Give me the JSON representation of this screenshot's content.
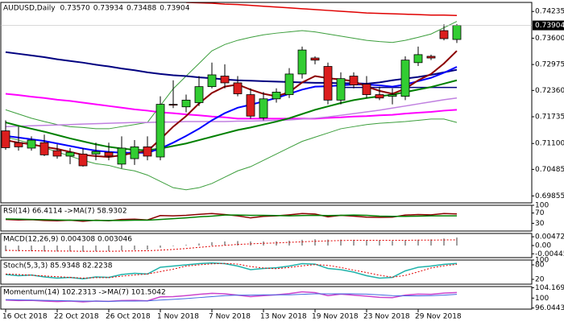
{
  "chart_data": [
    {
      "type": "candlestick",
      "title": "AUDUSD,Daily",
      "header_values": [
        "0.73570",
        "0.73934",
        "0.73488",
        "0.73904"
      ],
      "categories": [
        "16 Oct 2018",
        null,
        null,
        null,
        "22 Oct 2018",
        null,
        null,
        null,
        "26 Oct 2018",
        null,
        null,
        null,
        "1 Nov 2018",
        null,
        null,
        null,
        "7 Nov 2018",
        null,
        null,
        null,
        "13 Nov 2018",
        null,
        null,
        null,
        "19 Nov 2018",
        null,
        null,
        null,
        "23 Nov 2018",
        null,
        null,
        null,
        "29 Nov 2018",
        null,
        null,
        null
      ],
      "open": [
        0.714,
        0.7112,
        0.7099,
        0.7112,
        0.7093,
        0.708,
        0.7085,
        0.7085,
        0.7089,
        0.7061,
        0.7074,
        0.7102,
        0.7078,
        0.7203,
        0.7197,
        0.7207,
        0.7245,
        0.727,
        0.7254,
        0.7226,
        0.7171,
        0.7216,
        0.7226,
        0.7275,
        0.7313,
        0.7293,
        0.7213,
        0.727,
        0.7251,
        0.7226,
        0.7222,
        0.7222,
        0.7302,
        0.7317,
        0.7378,
        0.7357
      ],
      "high": [
        0.7165,
        0.715,
        0.7127,
        0.7131,
        0.7108,
        0.7099,
        0.7099,
        0.7112,
        0.7112,
        0.7127,
        0.7118,
        0.7127,
        0.7222,
        0.726,
        0.7226,
        0.727,
        0.7302,
        0.7298,
        0.727,
        0.7241,
        0.7232,
        0.7241,
        0.7289,
        0.734,
        0.7317,
        0.7302,
        0.7279,
        0.7279,
        0.727,
        0.7245,
        0.7241,
        0.7317,
        0.734,
        0.7321,
        0.7393,
        0.73934
      ],
      "low": [
        0.7095,
        0.7093,
        0.7093,
        0.708,
        0.7074,
        0.7061,
        0.7055,
        0.707,
        0.707,
        0.7051,
        0.7059,
        0.707,
        0.707,
        0.7194,
        0.7184,
        0.7199,
        0.7241,
        0.7241,
        0.7222,
        0.7169,
        0.7165,
        0.7207,
        0.7218,
        0.7264,
        0.7298,
        0.7203,
        0.7203,
        0.7241,
        0.7218,
        0.7213,
        0.7203,
        0.7213,
        0.7294,
        0.7308,
        0.7355,
        0.73488
      ],
      "close": [
        0.71,
        0.7102,
        0.7118,
        0.7083,
        0.708,
        0.7089,
        0.7057,
        0.7091,
        0.708,
        0.7099,
        0.7102,
        0.708,
        0.7203,
        0.7201,
        0.7213,
        0.7245,
        0.7273,
        0.7254,
        0.7228,
        0.7175,
        0.7216,
        0.7232,
        0.7275,
        0.7332,
        0.7308,
        0.7213,
        0.7264,
        0.7249,
        0.7226,
        0.7218,
        0.7226,
        0.7308,
        0.7321,
        0.7313,
        0.7359,
        0.73904
      ],
      "up_color": "#32cd32",
      "down_color": "#dc1e1e",
      "series": [
        {
          "color": "#3c9e3c",
          "width": 1,
          "values": [
            0.719,
            0.718,
            0.717,
            0.7162,
            0.7155,
            0.715,
            0.7148,
            0.7145,
            0.7145,
            0.715,
            0.7155,
            0.716,
            0.72,
            0.724,
            0.727,
            0.73,
            0.733,
            0.7345,
            0.7355,
            0.7362,
            0.7368,
            0.7372,
            0.7375,
            0.7378,
            0.7375,
            0.737,
            0.7365,
            0.736,
            0.7355,
            0.7352,
            0.735,
            0.7355,
            0.7362,
            0.737,
            0.7385,
            0.74
          ]
        },
        {
          "color": "#3c9e3c",
          "width": 1,
          "values": [
            0.7125,
            0.7118,
            0.711,
            0.71,
            0.709,
            0.708,
            0.707,
            0.7062,
            0.7058,
            0.705,
            0.7045,
            0.7035,
            0.702,
            0.7005,
            0.7,
            0.7005,
            0.7015,
            0.703,
            0.7045,
            0.7055,
            0.707,
            0.7085,
            0.71,
            0.7115,
            0.7125,
            0.7135,
            0.7145,
            0.715,
            0.7155,
            0.7158,
            0.716,
            0.7162,
            0.7165,
            0.7168,
            0.7168,
            0.716
          ]
        },
        {
          "color": "#e00000",
          "width": 1.5,
          "values": [
            null,
            null,
            null,
            null,
            null,
            null,
            null,
            null,
            null,
            null,
            null,
            null,
            null,
            null,
            0.7445,
            0.7444,
            0.7443,
            0.7441,
            0.744,
            0.7438,
            0.7436,
            0.7434,
            0.7432,
            0.743,
            0.7428,
            0.7426,
            0.7424,
            0.7422,
            0.742,
            0.7419,
            0.7418,
            0.7417,
            0.7416,
            0.7415,
            0.7415,
            0.7414
          ]
        },
        {
          "color": "#000080",
          "width": 2,
          "values": [
            0.7327,
            0.7323,
            0.7319,
            0.7315,
            0.731,
            0.7306,
            0.7302,
            0.7297,
            0.7293,
            0.7288,
            0.7284,
            0.7279,
            0.7275,
            0.7272,
            0.727,
            0.7267,
            0.7265,
            0.7262,
            0.726,
            0.7259,
            0.7258,
            0.7257,
            0.7256,
            0.7255,
            0.7254,
            0.7254,
            0.7253,
            0.7253,
            0.7252,
            0.7255,
            0.726,
            0.7264,
            0.7268,
            0.7273,
            0.7279,
            0.7285
          ]
        },
        {
          "color": "#000080",
          "width": 1.5,
          "values": [
            null,
            null,
            null,
            null,
            null,
            null,
            null,
            null,
            null,
            null,
            null,
            null,
            null,
            null,
            null,
            null,
            null,
            null,
            null,
            null,
            null,
            null,
            null,
            null,
            null,
            null,
            0.7243,
            0.7243,
            0.7243,
            0.7243,
            0.7243,
            0.7243,
            0.7243,
            0.7243,
            0.7243,
            0.7243
          ]
        },
        {
          "color": "#ff00ff",
          "width": 2,
          "values": [
            0.7228,
            0.7225,
            0.7221,
            0.7218,
            0.7214,
            0.7211,
            0.7207,
            0.7203,
            0.7199,
            0.7195,
            0.7191,
            0.7188,
            0.7184,
            0.7182,
            0.7179,
            0.7177,
            0.7174,
            0.7172,
            0.7169,
            0.7169,
            0.7169,
            0.7169,
            0.7169,
            0.7169,
            0.7169,
            0.7171,
            0.7172,
            0.7174,
            0.7175,
            0.7177,
            0.7178,
            0.7181,
            0.7183,
            0.7185,
            0.7188,
            0.719
          ]
        },
        {
          "color": "#c080e0",
          "width": 1.5,
          "values": [
            0.715,
            0.7151,
            0.7152,
            0.7153,
            0.7154,
            0.7155,
            0.7156,
            0.7157,
            0.7158,
            0.7159,
            0.716,
            0.716,
            0.7161,
            0.7161,
            0.7162,
            0.7162,
            0.7162,
            0.7162,
            0.7163,
            0.7163,
            0.7164,
            0.7165,
            0.7166,
            0.7168,
            0.717,
            0.7173,
            0.7177,
            0.7181,
            0.7185,
            0.7189,
            0.7194,
            0.7199,
            0.7204,
            0.7209,
            0.7214,
            0.7218
          ]
        },
        {
          "color": "#008000",
          "width": 2,
          "values": [
            0.716,
            0.7152,
            0.7145,
            0.7138,
            0.713,
            0.7122,
            0.7115,
            0.7108,
            0.7102,
            0.7098,
            0.7095,
            0.7094,
            0.7098,
            0.7104,
            0.711,
            0.7118,
            0.7126,
            0.7134,
            0.7142,
            0.7148,
            0.7155,
            0.7162,
            0.717,
            0.718,
            0.719,
            0.7198,
            0.7206,
            0.7213,
            0.7218,
            0.7222,
            0.7226,
            0.7232,
            0.7238,
            0.7244,
            0.7252,
            0.726
          ]
        },
        {
          "color": "#0000ff",
          "width": 2,
          "values": [
            0.7128,
            0.7124,
            0.712,
            0.7116,
            0.711,
            0.7104,
            0.7098,
            0.7093,
            0.709,
            0.7088,
            0.7088,
            0.7088,
            0.7098,
            0.7112,
            0.7128,
            0.7145,
            0.7165,
            0.7182,
            0.7195,
            0.7202,
            0.721,
            0.7218,
            0.7228,
            0.7238,
            0.7245,
            0.7246,
            0.7248,
            0.725,
            0.725,
            0.7248,
            0.7245,
            0.725,
            0.7258,
            0.7266,
            0.7278,
            0.7292
          ]
        },
        {
          "color": "#8b0000",
          "width": 2,
          "values": [
            0.7118,
            0.7112,
            0.7108,
            0.7102,
            0.7097,
            0.709,
            0.7083,
            0.708,
            0.7078,
            0.7082,
            0.7088,
            0.7092,
            0.712,
            0.715,
            0.7175,
            0.7205,
            0.723,
            0.7245,
            0.725,
            0.7238,
            0.7228,
            0.7222,
            0.7232,
            0.7255,
            0.727,
            0.7265,
            0.7262,
            0.7258,
            0.7245,
            0.7235,
            0.7228,
            0.724,
            0.726,
            0.7275,
            0.73,
            0.733
          ]
        }
      ],
      "ylim": [
        0.6969,
        0.7445
      ],
      "yticks": [
        0.74235,
        {
          "value": 0.736,
          "label": "0.73600"
        },
        0.72975,
        {
          "value": 0.7236,
          "label": "0.72360"
        },
        0.71735,
        {
          "value": 0.711,
          "label": "0.71100"
        },
        0.70485,
        0.69855
      ],
      "last_price": {
        "value": 0.73904,
        "label": "0.73904"
      }
    },
    {
      "type": "line",
      "title": "RSI(14) 66.4114 ->MA(7) 58.9302",
      "series": [
        {
          "color": "#8b0000",
          "width": 1.5,
          "values": [
            45,
            43,
            44,
            41,
            40,
            42,
            38,
            42,
            40,
            45,
            46,
            43,
            60,
            59,
            61,
            65,
            68,
            64,
            59,
            51,
            57,
            59,
            63,
            68,
            66,
            55,
            61,
            58,
            54,
            53,
            54,
            62,
            64,
            63,
            68,
            66.4114
          ]
        },
        {
          "color": "#008000",
          "width": 1.5,
          "values": [
            47,
            46,
            45,
            44,
            43,
            42,
            42,
            41,
            41,
            41,
            42,
            42,
            45,
            48,
            51,
            55,
            58,
            62,
            62,
            61,
            61,
            60,
            59,
            60,
            61,
            60,
            61,
            62,
            61,
            58,
            57,
            57,
            58,
            59,
            59,
            58.9302
          ]
        }
      ],
      "ylim": [
        0,
        100
      ],
      "yticks": [
        100,
        70,
        30
      ]
    },
    {
      "type": "macd",
      "title": "MACD(12,26,9) 0.004308 0.003046",
      "series": [
        {
          "style": "bar",
          "color": "#a0a0a0",
          "values": [
            -0.003,
            -0.0031,
            -0.0031,
            -0.0032,
            -0.0032,
            -0.0032,
            -0.0033,
            -0.0031,
            -0.003,
            -0.0027,
            -0.0024,
            -0.0022,
            -0.0012,
            -0.0003,
            0.0004,
            0.0011,
            0.0018,
            0.0022,
            0.0024,
            0.0022,
            0.0022,
            0.0023,
            0.0026,
            0.0031,
            0.0034,
            0.0032,
            0.0032,
            0.0031,
            0.0029,
            0.0027,
            0.0025,
            0.0028,
            0.0031,
            0.0033,
            0.0038,
            0.004308
          ]
        },
        {
          "style": "dotted",
          "color": "#e00000",
          "width": 1,
          "values": [
            -0.0026,
            -0.0027,
            -0.0028,
            -0.0029,
            -0.003,
            -0.003,
            -0.0031,
            -0.0031,
            -0.0031,
            -0.003,
            -0.0029,
            -0.0028,
            -0.0025,
            -0.0021,
            -0.0016,
            -0.001,
            -0.0004,
            0.0001,
            0.0006,
            0.0009,
            0.0012,
            0.0014,
            0.0017,
            0.002,
            0.0023,
            0.0025,
            0.0027,
            0.0028,
            0.0028,
            0.0028,
            0.0028,
            0.0028,
            0.0029,
            0.0029,
            0.003,
            0.003046
          ]
        }
      ],
      "ylim": [
        -0.0065,
        0.0065
      ],
      "yticks": [
        0.004725,
        {
          "value": 0,
          "label": "0.00"
        },
        -0.004455
      ]
    },
    {
      "type": "line",
      "title": "Stoch(5,3,3) 85.9348 82.2238",
      "series": [
        {
          "color": "#20b2aa",
          "width": 1.5,
          "values": [
            40,
            35,
            38,
            30,
            25,
            28,
            22,
            30,
            28,
            40,
            45,
            42,
            70,
            75,
            80,
            85,
            88,
            85,
            75,
            60,
            65,
            68,
            75,
            85,
            83,
            65,
            60,
            50,
            35,
            25,
            28,
            55,
            70,
            75,
            82,
            85.9348
          ]
        },
        {
          "style": "dotted",
          "color": "#e00000",
          "width": 1,
          "values": [
            42,
            40,
            37,
            34,
            31,
            28,
            25,
            27,
            27,
            33,
            38,
            42,
            52,
            62,
            75,
            80,
            84,
            86,
            83,
            73,
            67,
            64,
            69,
            76,
            81,
            78,
            69,
            58,
            48,
            37,
            29,
            36,
            51,
            67,
            76,
            82.2238
          ]
        }
      ],
      "ylim": [
        0,
        100
      ],
      "yticks": [
        100,
        80,
        20
      ]
    },
    {
      "type": "line",
      "title": "Momentum(14) 102.2313 ->MA(7) 101.5042",
      "series": [
        {
          "color": "#cc44cc",
          "width": 1.5,
          "values": [
            99.2,
            99,
            99.1,
            98.8,
            98.6,
            98.8,
            98.5,
            98.8,
            98.7,
            99,
            99.1,
            98.9,
            100.5,
            100.6,
            101,
            101.5,
            101.9,
            101.7,
            101.2,
            100.6,
            101,
            101.3,
            101.8,
            102.5,
            102.2,
            101,
            101.6,
            101.2,
            100.8,
            100.3,
            100.2,
            101.2,
            101.6,
            101.5,
            102,
            102.2313
          ]
        },
        {
          "color": "#4169e1",
          "width": 1,
          "values": [
            99.4,
            99.3,
            99.2,
            99.1,
            99,
            98.9,
            98.8,
            98.8,
            98.7,
            98.8,
            98.8,
            98.9,
            99.2,
            99.5,
            99.8,
            100.2,
            100.6,
            101,
            101.2,
            101.2,
            101.3,
            101.3,
            101.3,
            101.5,
            101.7,
            101.7,
            101.7,
            101.7,
            101.6,
            101.3,
            101,
            100.9,
            100.9,
            101,
            101.2,
            101.5042
          ]
        }
      ],
      "ylim": [
        95.6,
        104.6
      ],
      "yticks": [
        104.1693,
        100,
        96.0443
      ]
    }
  ]
}
